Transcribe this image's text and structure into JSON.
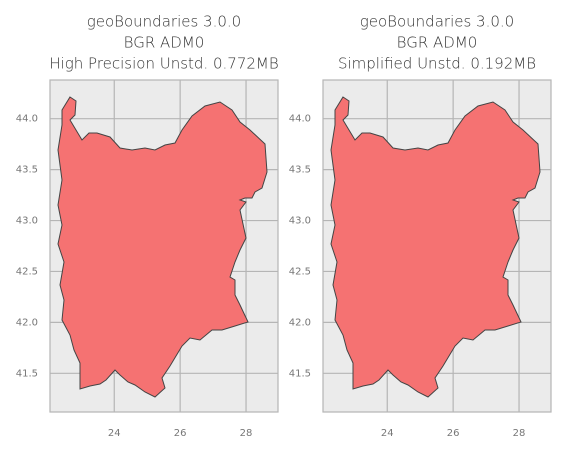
{
  "chart_data": [
    {
      "type": "map",
      "title": [
        "geoBoundaries 3.0.0",
        "BGR ADM0",
        "High Precision Unstd. 0.772MB"
      ],
      "xlim": [
        22.05,
        28.97
      ],
      "ylim": [
        41.12,
        44.38
      ],
      "xticks": [
        24,
        26,
        28
      ],
      "yticks": [
        {
          "value": 41.5,
          "label": "41.5"
        },
        {
          "value": 42,
          "label": "42.0"
        },
        {
          "value": 42.5,
          "label": "42.5"
        },
        {
          "value": 43,
          "label": "43.0"
        },
        {
          "value": 43.5,
          "label": "43.5"
        },
        {
          "value": 44,
          "label": "44.0"
        }
      ],
      "grid": true,
      "color": "#f57272"
    },
    {
      "type": "map",
      "title": [
        "geoBoundaries 3.0.0",
        "BGR ADM0",
        "Simplified Unstd. 0.192MB"
      ],
      "xlim": [
        22.05,
        28.97
      ],
      "ylim": [
        41.12,
        44.38
      ],
      "xticks": [
        24,
        26,
        28
      ],
      "yticks": [
        {
          "value": 41.5,
          "label": "41.5"
        },
        {
          "value": 42,
          "label": "42.0"
        },
        {
          "value": 42.5,
          "label": "42.5"
        },
        {
          "value": 43,
          "label": "43.0"
        },
        {
          "value": 43.5,
          "label": "43.5"
        },
        {
          "value": 44,
          "label": "44.0"
        }
      ],
      "grid": true,
      "color": "#f57272"
    }
  ]
}
